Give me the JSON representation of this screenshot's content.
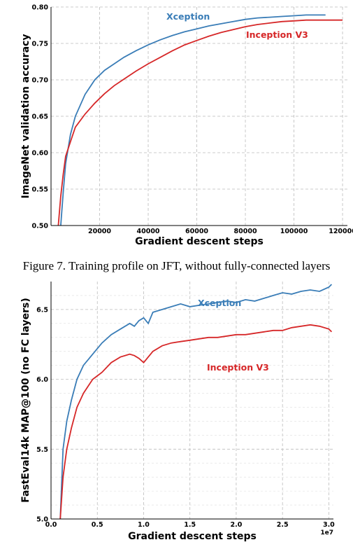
{
  "chart_data": [
    {
      "type": "line",
      "xlabel": "Gradient descent steps",
      "ylabel": "ImageNet validation accuracy",
      "xlim": [
        0,
        122000
      ],
      "ylim": [
        0.5,
        0.8
      ],
      "xticks": [
        20000,
        40000,
        60000,
        80000,
        100000,
        120000
      ],
      "xtick_labels": [
        "20000",
        "40000",
        "60000",
        "80000",
        "100000",
        "120000"
      ],
      "yticks": [
        0.5,
        0.55,
        0.6,
        0.65,
        0.7,
        0.75,
        0.8
      ],
      "ytick_labels": [
        "0.50",
        "0.55",
        "0.60",
        "0.65",
        "0.70",
        "0.75",
        "0.80"
      ],
      "grid": true,
      "series": [
        {
          "name": "Xception",
          "color": "#3a7db7",
          "x": [
            4000,
            5000,
            6000,
            8000,
            10000,
            14000,
            18000,
            22000,
            26000,
            30000,
            35000,
            40000,
            45000,
            50000,
            55000,
            60000,
            65000,
            70000,
            75000,
            80000,
            85000,
            90000,
            95000,
            100000,
            105000,
            110000,
            113000
          ],
          "y": [
            0.5,
            0.545,
            0.585,
            0.625,
            0.65,
            0.68,
            0.7,
            0.713,
            0.722,
            0.731,
            0.74,
            0.748,
            0.755,
            0.761,
            0.766,
            0.77,
            0.774,
            0.777,
            0.78,
            0.783,
            0.785,
            0.786,
            0.787,
            0.788,
            0.789,
            0.789,
            0.789
          ]
        },
        {
          "name": "Inception V3",
          "color": "#d62728",
          "x": [
            3000,
            4000,
            5000,
            6000,
            8000,
            10000,
            14000,
            18000,
            22000,
            26000,
            30000,
            35000,
            40000,
            45000,
            50000,
            55000,
            60000,
            65000,
            70000,
            75000,
            80000,
            85000,
            90000,
            95000,
            100000,
            105000,
            110000,
            115000,
            120000
          ],
          "y": [
            0.5,
            0.54,
            0.57,
            0.595,
            0.615,
            0.635,
            0.653,
            0.668,
            0.681,
            0.692,
            0.701,
            0.712,
            0.722,
            0.731,
            0.74,
            0.748,
            0.754,
            0.76,
            0.765,
            0.769,
            0.773,
            0.776,
            0.778,
            0.78,
            0.781,
            0.782,
            0.782,
            0.782,
            0.782
          ]
        }
      ]
    },
    {
      "type": "line",
      "xlabel": "Gradient descent steps",
      "ylabel": "FastEval14k MAP@100 (no FC layers)",
      "x_offset_label": "1e7",
      "xlim": [
        0,
        3.05
      ],
      "ylim": [
        5.0,
        6.7
      ],
      "xticks": [
        0.0,
        0.5,
        1.0,
        1.5,
        2.0,
        2.5,
        3.0
      ],
      "xtick_labels": [
        "0.0",
        "0.5",
        "1.0",
        "1.5",
        "2.0",
        "2.5",
        "3.0"
      ],
      "yticks": [
        5.0,
        5.5,
        6.0,
        6.5
      ],
      "ytick_labels": [
        "5.0",
        "5.5",
        "6.0",
        "6.5"
      ],
      "grid": true,
      "series": [
        {
          "name": "Xception",
          "color": "#3a7db7",
          "x": [
            0.1,
            0.13,
            0.17,
            0.22,
            0.28,
            0.35,
            0.45,
            0.55,
            0.65,
            0.75,
            0.85,
            0.9,
            0.95,
            1.0,
            1.05,
            1.1,
            1.2,
            1.3,
            1.4,
            1.5,
            1.6,
            1.7,
            1.8,
            1.9,
            2.0,
            2.1,
            2.2,
            2.3,
            2.4,
            2.5,
            2.6,
            2.7,
            2.8,
            2.9,
            3.0,
            3.03
          ],
          "y": [
            5.0,
            5.5,
            5.7,
            5.85,
            6.0,
            6.1,
            6.18,
            6.26,
            6.32,
            6.36,
            6.4,
            6.38,
            6.42,
            6.44,
            6.4,
            6.48,
            6.5,
            6.52,
            6.54,
            6.52,
            6.53,
            6.54,
            6.55,
            6.56,
            6.55,
            6.57,
            6.56,
            6.58,
            6.6,
            6.62,
            6.61,
            6.63,
            6.64,
            6.63,
            6.66,
            6.68
          ]
        },
        {
          "name": "Inception V3",
          "color": "#d62728",
          "x": [
            0.1,
            0.13,
            0.17,
            0.22,
            0.28,
            0.35,
            0.45,
            0.55,
            0.65,
            0.75,
            0.85,
            0.9,
            0.95,
            1.0,
            1.05,
            1.1,
            1.2,
            1.3,
            1.4,
            1.5,
            1.6,
            1.7,
            1.8,
            1.9,
            2.0,
            2.1,
            2.2,
            2.3,
            2.4,
            2.5,
            2.6,
            2.7,
            2.8,
            2.9,
            3.0,
            3.03
          ],
          "y": [
            5.0,
            5.3,
            5.5,
            5.65,
            5.8,
            5.9,
            6.0,
            6.05,
            6.12,
            6.16,
            6.18,
            6.17,
            6.15,
            6.12,
            6.16,
            6.2,
            6.24,
            6.26,
            6.27,
            6.28,
            6.29,
            6.3,
            6.3,
            6.31,
            6.32,
            6.32,
            6.33,
            6.34,
            6.35,
            6.35,
            6.37,
            6.38,
            6.39,
            6.38,
            6.36,
            6.34
          ]
        }
      ]
    }
  ],
  "caption": "Figure 7. Training profile on JFT, without fully-connected layers"
}
